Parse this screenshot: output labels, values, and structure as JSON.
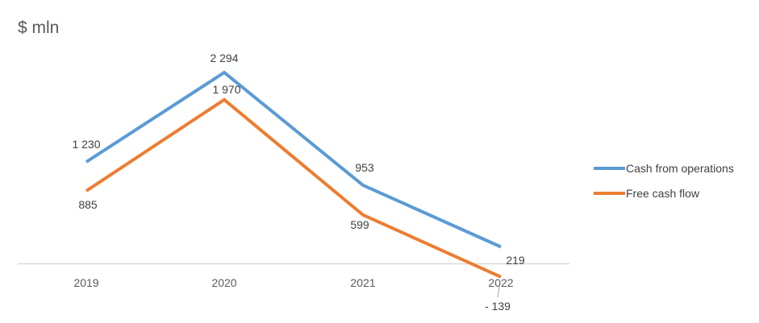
{
  "chart_data": {
    "type": "line",
    "title": "",
    "unit_label": "$ mln",
    "xlabel": "",
    "ylabel": "",
    "categories": [
      "2019",
      "2020",
      "2021",
      "2022"
    ],
    "series": [
      {
        "name": "Cash from operations",
        "color": "#5B9BD5",
        "values": [
          1230,
          2294,
          953,
          219
        ],
        "labels": [
          "1 230",
          "2 294",
          "953",
          "219"
        ]
      },
      {
        "name": "Free cash flow",
        "color": "#ED7D31",
        "values": [
          885,
          1970,
          599,
          -139
        ],
        "labels": [
          "885",
          "1 970",
          "599",
          "- 139"
        ]
      }
    ],
    "ylim": [
      -139,
      2294
    ],
    "grid": false,
    "legend_position": "right"
  }
}
